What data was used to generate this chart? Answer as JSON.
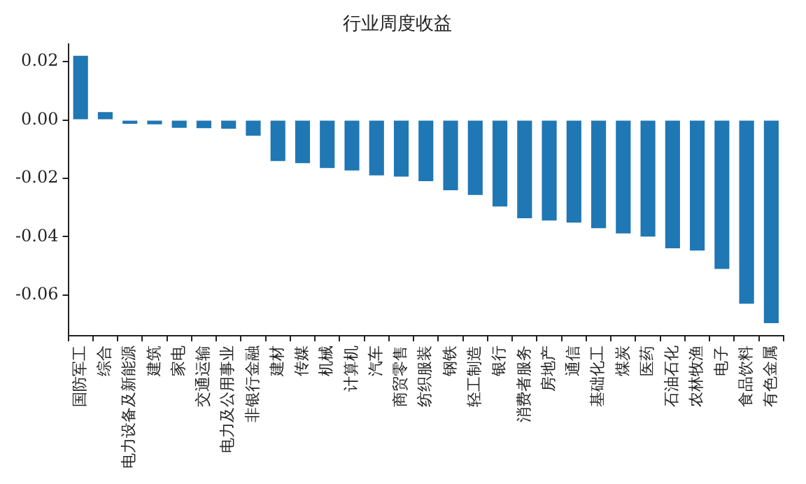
{
  "chart_data": {
    "type": "bar",
    "title": "行业周度收益",
    "categories": [
      "国防军工",
      "综合",
      "电力设备及新能源",
      "建筑",
      "家电",
      "交通运输",
      "电力及公用事业",
      "非银行金融",
      "建材",
      "传媒",
      "机械",
      "计算机",
      "汽车",
      "商贸零售",
      "纺织服装",
      "钢铁",
      "轻工制造",
      "银行",
      "消费者服务",
      "房地产",
      "通信",
      "基础化工",
      "煤炭",
      "医药",
      "石油石化",
      "农林牧渔",
      "电子",
      "食品饮料",
      "有色金属"
    ],
    "values": [
      0.022,
      0.0027,
      -0.0013,
      -0.0015,
      -0.0027,
      -0.0028,
      -0.003,
      -0.0054,
      -0.0141,
      -0.0148,
      -0.0165,
      -0.0173,
      -0.019,
      -0.0194,
      -0.021,
      -0.0241,
      -0.0257,
      -0.0297,
      -0.0337,
      -0.0345,
      -0.0352,
      -0.0371,
      -0.0389,
      -0.04,
      -0.044,
      -0.0448,
      -0.0511,
      -0.063,
      -0.0697
    ],
    "color": "#1f77b4",
    "ylim": [
      -0.074,
      0.026
    ],
    "yticks": [
      {
        "value": -0.06,
        "label": "-0.06"
      },
      {
        "value": -0.04,
        "label": "-0.04"
      },
      {
        "value": -0.02,
        "label": "-0.02"
      },
      {
        "value": 0,
        "label": "0.00"
      },
      {
        "value": 0.02,
        "label": "0.02"
      }
    ],
    "grid": false,
    "legend": false
  }
}
